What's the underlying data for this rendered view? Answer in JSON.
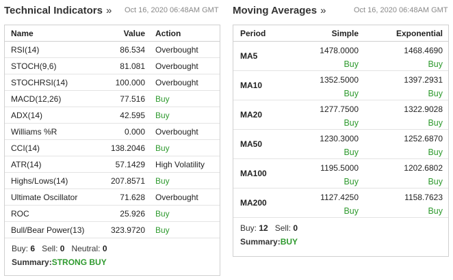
{
  "technical": {
    "title": "Technical Indicators",
    "link_glyph": "»",
    "timestamp": "Oct 16, 2020 06:48AM GMT",
    "headers": {
      "name": "Name",
      "value": "Value",
      "action": "Action"
    },
    "rows": [
      {
        "name": "RSI(14)",
        "value": "86.534",
        "action": "Overbought"
      },
      {
        "name": "STOCH(9,6)",
        "value": "81.081",
        "action": "Overbought"
      },
      {
        "name": "STOCHRSI(14)",
        "value": "100.000",
        "action": "Overbought"
      },
      {
        "name": "MACD(12,26)",
        "value": "77.516",
        "action": "Buy"
      },
      {
        "name": "ADX(14)",
        "value": "42.595",
        "action": "Buy"
      },
      {
        "name": "Williams %R",
        "value": "0.000",
        "action": "Overbought"
      },
      {
        "name": "CCI(14)",
        "value": "138.2046",
        "action": "Buy"
      },
      {
        "name": "ATR(14)",
        "value": "57.1429",
        "action": "High Volatility"
      },
      {
        "name": "Highs/Lows(14)",
        "value": "207.8571",
        "action": "Buy"
      },
      {
        "name": "Ultimate Oscillator",
        "value": "71.628",
        "action": "Overbought"
      },
      {
        "name": "ROC",
        "value": "25.926",
        "action": "Buy"
      },
      {
        "name": "Bull/Bear Power(13)",
        "value": "323.9720",
        "action": "Buy"
      }
    ],
    "footer": {
      "buy_label": "Buy:",
      "buy_count": "6",
      "sell_label": "Sell:",
      "sell_count": "0",
      "neutral_label": "Neutral:",
      "neutral_count": "0",
      "summary_label": "Summary:",
      "summary_value": "STRONG BUY"
    }
  },
  "moving": {
    "title": "Moving Averages",
    "link_glyph": "»",
    "timestamp": "Oct 16, 2020 06:48AM GMT",
    "headers": {
      "period": "Period",
      "simple": "Simple",
      "exponential": "Exponential"
    },
    "rows": [
      {
        "period": "MA5",
        "simple": "1478.0000",
        "simple_sig": "Buy",
        "exp": "1468.4690",
        "exp_sig": "Buy"
      },
      {
        "period": "MA10",
        "simple": "1352.5000",
        "simple_sig": "Buy",
        "exp": "1397.2931",
        "exp_sig": "Buy"
      },
      {
        "period": "MA20",
        "simple": "1277.7500",
        "simple_sig": "Buy",
        "exp": "1322.9028",
        "exp_sig": "Buy"
      },
      {
        "period": "MA50",
        "simple": "1230.3000",
        "simple_sig": "Buy",
        "exp": "1252.6870",
        "exp_sig": "Buy"
      },
      {
        "period": "MA100",
        "simple": "1195.5000",
        "simple_sig": "Buy",
        "exp": "1202.6802",
        "exp_sig": "Buy"
      },
      {
        "period": "MA200",
        "simple": "1127.4250",
        "simple_sig": "Buy",
        "exp": "1158.7623",
        "exp_sig": "Buy"
      }
    ],
    "footer": {
      "buy_label": "Buy:",
      "buy_count": "12",
      "sell_label": "Sell:",
      "sell_count": "0",
      "summary_label": "Summary:",
      "summary_value": "BUY"
    }
  },
  "colors": {
    "buy": "#2e9a2e",
    "border": "#cfcfcf",
    "timestamp": "#888888"
  }
}
